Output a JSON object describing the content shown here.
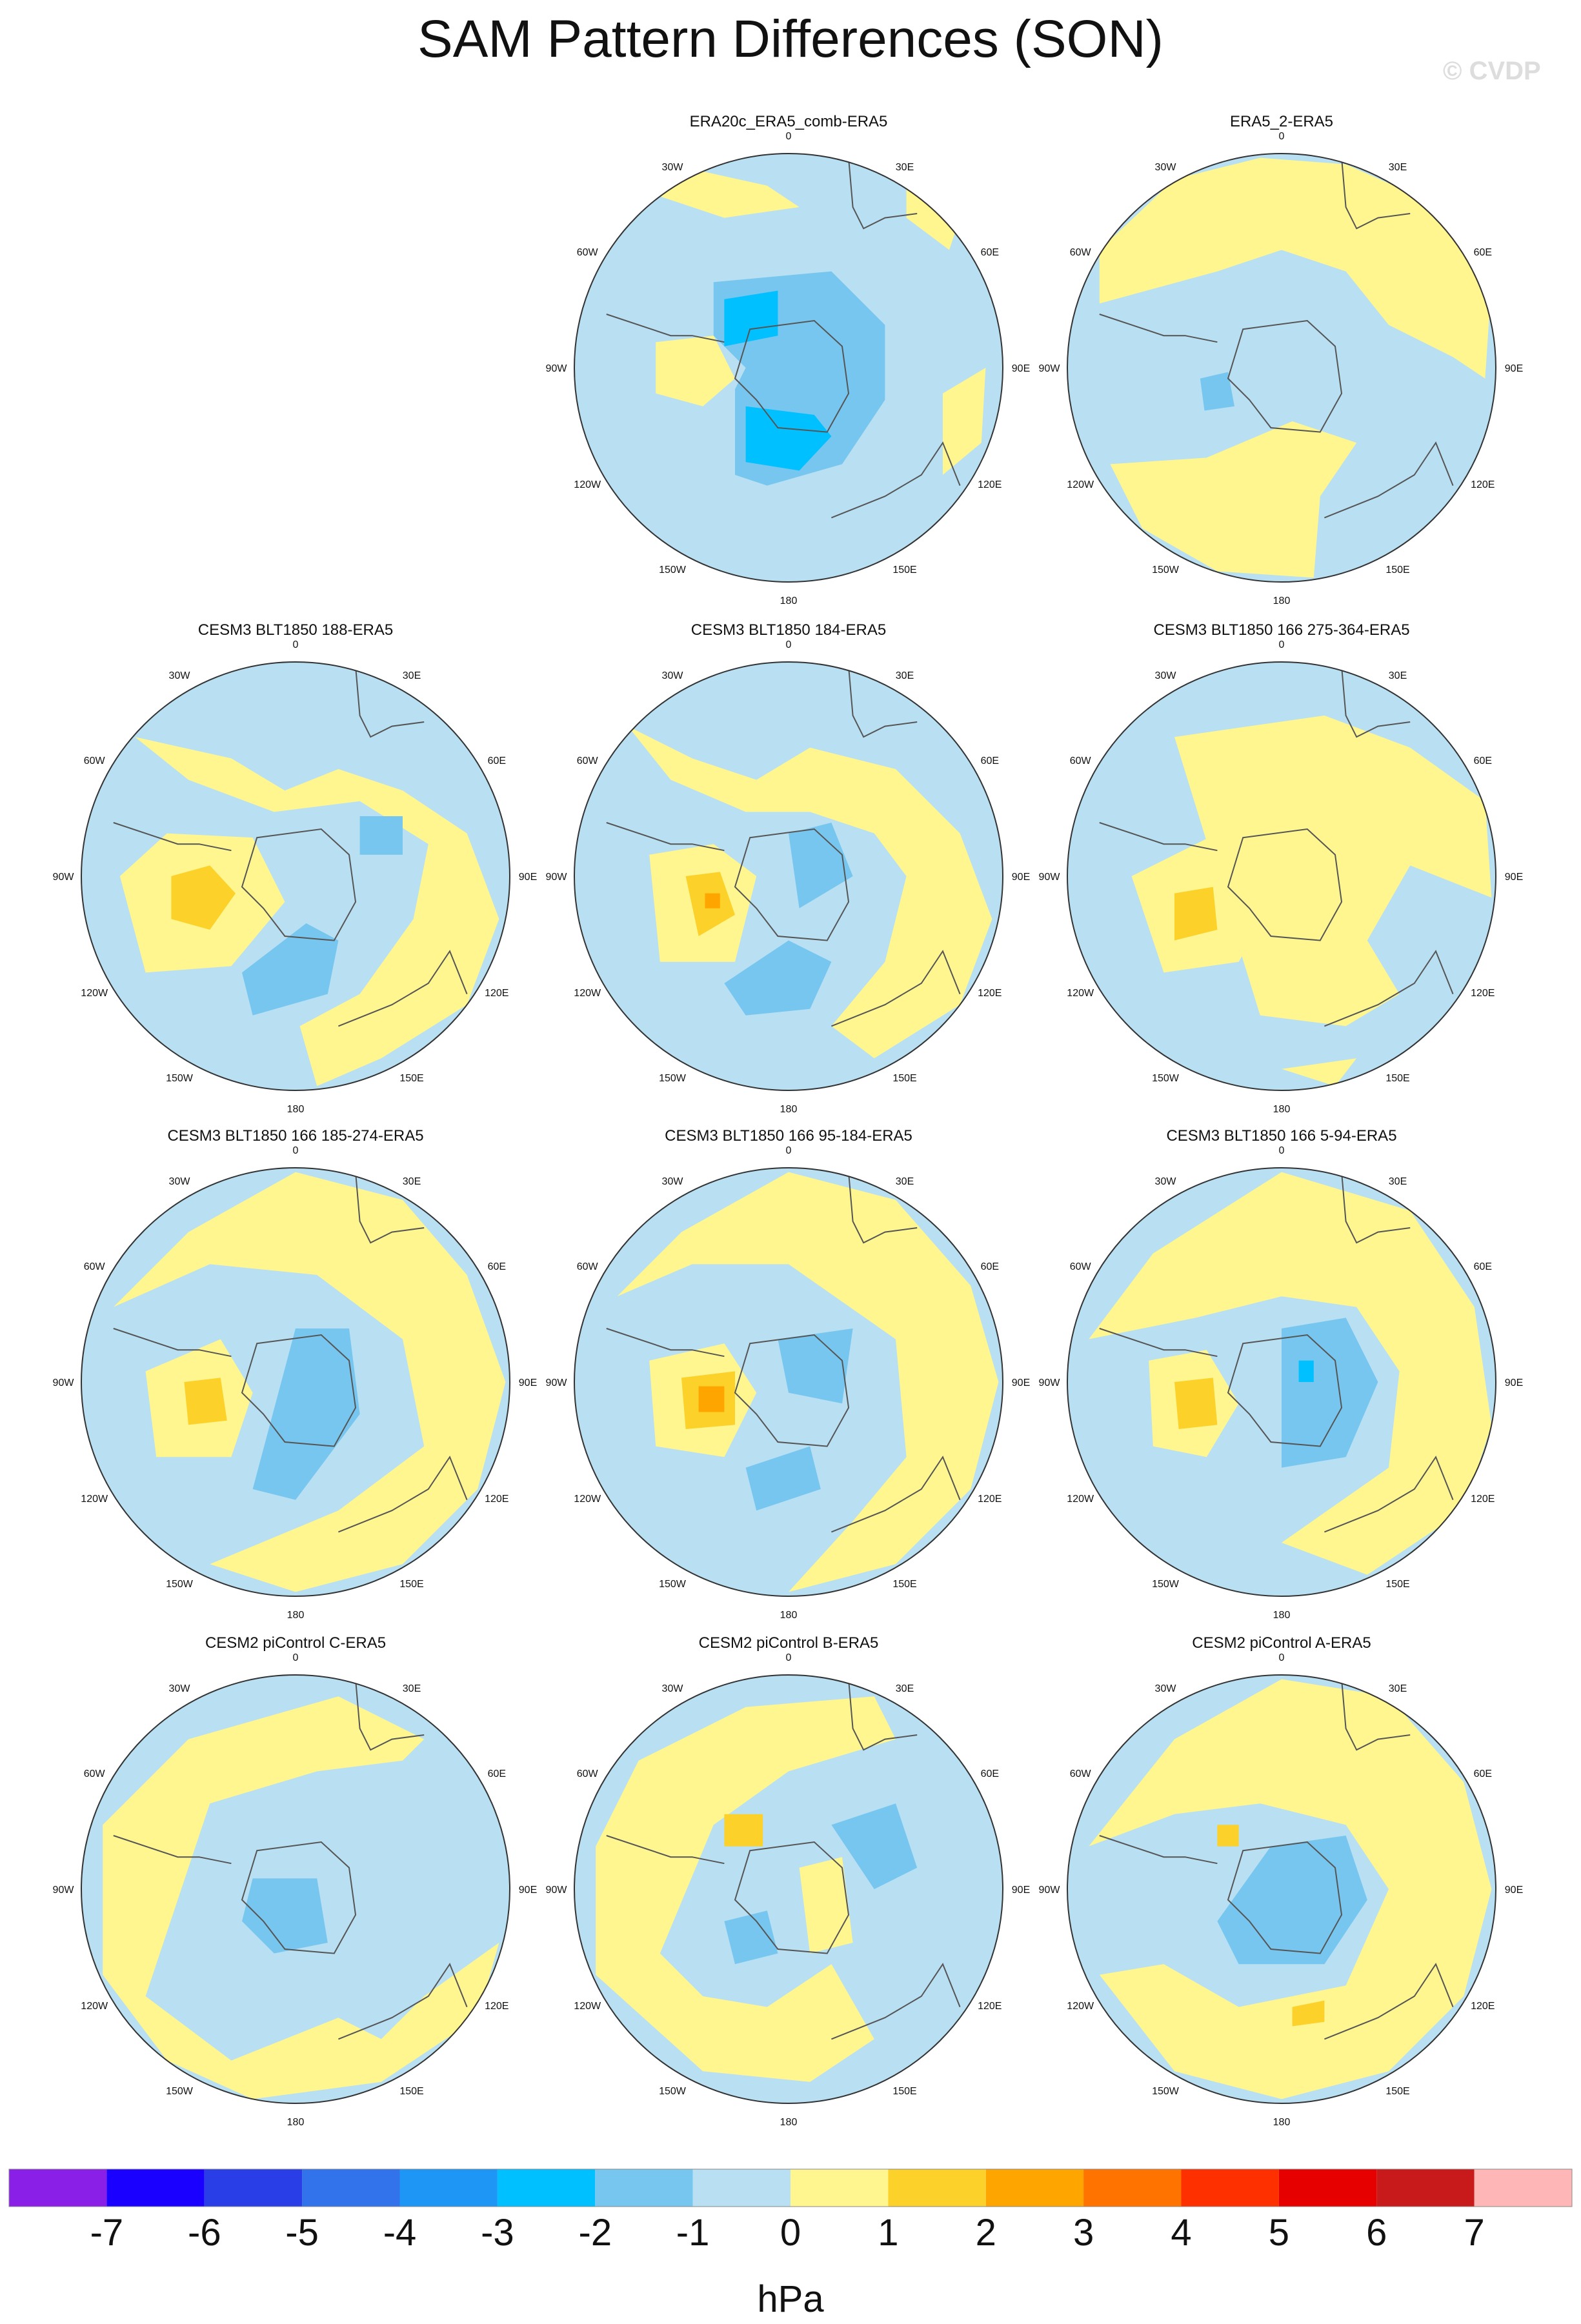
{
  "page": {
    "title": "SAM Pattern Differences (SON)",
    "watermark": "© CVDP"
  },
  "map": {
    "lat_labels": [
      "0",
      "30E",
      "60E",
      "90E",
      "120E",
      "150E",
      "180",
      "150W",
      "120W",
      "90W",
      "60W",
      "30W"
    ]
  },
  "chart_data": {
    "type": "filled-contour-polar-maps",
    "title": "SAM Pattern Differences (SON)",
    "units": "hPa",
    "panels": [
      {
        "title": "ERA20c_ERA5_comb-ERA5",
        "fields": []
      },
      {
        "title": "ERA5_2-ERA5",
        "fields": []
      },
      {
        "title": "CESM3 BLT1850 188-ERA5",
        "fields": []
      },
      {
        "title": "CESM3 BLT1850 184-ERA5",
        "fields": []
      },
      {
        "title": "CESM3 BLT1850 166 275-364-ERA5",
        "fields": []
      },
      {
        "title": "CESM3 BLT1850 166 185-274-ERA5",
        "fields": []
      },
      {
        "title": "CESM3 BLT1850 166 95-184-ERA5",
        "fields": []
      },
      {
        "title": "CESM3 BLT1850 166 5-94-ERA5",
        "fields": []
      },
      {
        "title": "CESM2 piControl C-ERA5",
        "fields": []
      },
      {
        "title": "CESM2 piControl B-ERA5",
        "fields": []
      },
      {
        "title": "CESM2 piControl A-ERA5",
        "fields": []
      }
    ],
    "colorbar": {
      "label": "hPa",
      "ticks": [
        "-7",
        "-6",
        "-5",
        "-4",
        "-3",
        "-2",
        "-1",
        "0",
        "1",
        "2",
        "3",
        "4",
        "5",
        "6",
        "7"
      ],
      "colors": [
        "#8a20e8",
        "#1a00ff",
        "#2a3ee8",
        "#3272ea",
        "#1e96f5",
        "#00c0ff",
        "#76c6ef",
        "#b8dff2",
        "#fff68f",
        "#fcd12a",
        "#ffa500",
        "#ff7400",
        "#ff3000",
        "#e60000",
        "#c81a1a",
        "#ffb6b6"
      ]
    },
    "styles": {
      "background_field": "#b8dff2",
      "positive_fill": "#fff68f",
      "negative_fill": "#b8dff2",
      "level_fills": {
        "-3": "#00c0ff",
        "-2": "#76c6ef",
        "-1": "#b8dff2",
        "0": "#fff68f",
        "1": "#fcd12a",
        "2": "#ffa500"
      }
    }
  }
}
